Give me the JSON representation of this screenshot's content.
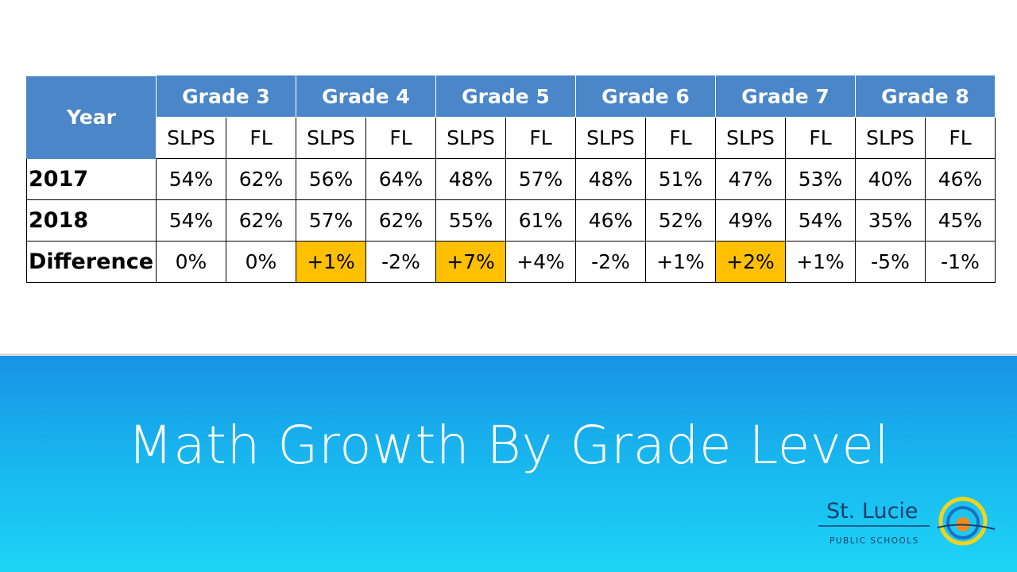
{
  "header": {
    "year": "Year",
    "grades": [
      "Grade 3",
      "Grade 4",
      "Grade 5",
      "Grade 6",
      "Grade 7",
      "Grade 8"
    ],
    "subheaders": [
      "SLPS",
      "FL",
      "SLPS",
      "FL",
      "SLPS",
      "FL",
      "SLPS",
      "FL",
      "SLPS",
      "FL",
      "SLPS",
      "FL"
    ]
  },
  "table": {
    "rows": [
      {
        "label": "2017",
        "cells": [
          {
            "text": "54%"
          },
          {
            "text": "62%"
          },
          {
            "text": "56%"
          },
          {
            "text": "64%"
          },
          {
            "text": "48%"
          },
          {
            "text": "57%"
          },
          {
            "text": "48%"
          },
          {
            "text": "51%"
          },
          {
            "text": "47%"
          },
          {
            "text": "53%"
          },
          {
            "text": "40%"
          },
          {
            "text": "46%"
          }
        ]
      },
      {
        "label": "2018",
        "cells": [
          {
            "text": "54%"
          },
          {
            "text": "62%"
          },
          {
            "text": "57%"
          },
          {
            "text": "62%"
          },
          {
            "text": "55%"
          },
          {
            "text": "61%"
          },
          {
            "text": "46%"
          },
          {
            "text": "52%"
          },
          {
            "text": "49%"
          },
          {
            "text": "54%"
          },
          {
            "text": "35%"
          },
          {
            "text": "45%"
          }
        ]
      },
      {
        "label": "Difference",
        "cells": [
          {
            "text": "0%"
          },
          {
            "text": "0%"
          },
          {
            "text": "+1%",
            "fill": "#ffc000"
          },
          {
            "text": "-2%"
          },
          {
            "text": "+7%",
            "fill": "#ffc000"
          },
          {
            "text": "+4%"
          },
          {
            "text": "-2%"
          },
          {
            "text": "+1%"
          },
          {
            "text": "+2%",
            "fill": "#ffc000"
          },
          {
            "text": "+1%"
          },
          {
            "text": "-5%"
          },
          {
            "text": "-1%"
          }
        ]
      }
    ]
  },
  "title": "Math Growth By Grade Level",
  "logo": {
    "name": "St. Lucie",
    "tagline": "PUBLIC SCHOOLS"
  }
}
